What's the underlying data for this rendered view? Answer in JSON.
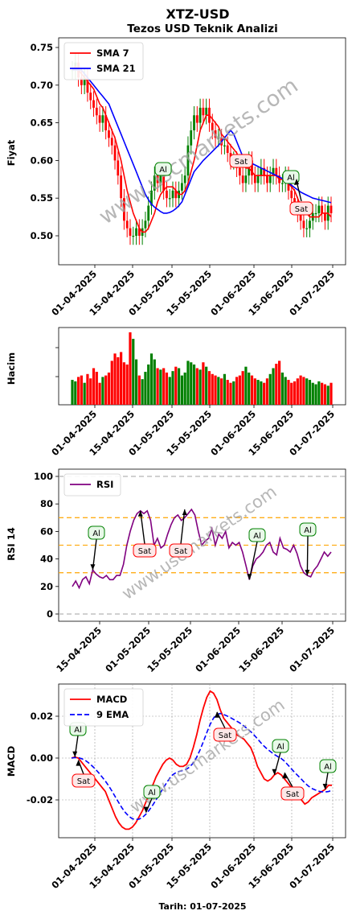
{
  "header": {
    "title": "XTZ-USD",
    "subtitle": "Tezos USD Teknik Analizi",
    "footer": "Tarih: 01-07-2025",
    "watermark": "www.uscmarkets.com"
  },
  "colors": {
    "up": "#008000",
    "down": "#ff0000",
    "sma7": "#ff0000",
    "sma21": "#0000ff",
    "rsi": "#800080",
    "macd": "#ff0000",
    "ema9": "#0000ff",
    "buy_edge": "#008000",
    "sell_edge": "#ff0000",
    "buy_fill": "#e8f8e8",
    "sell_fill": "#fde8e8",
    "level_line": "#ffa500"
  },
  "chart_data": [
    {
      "id": "price",
      "type": "candlestick",
      "ylabel": "Fiyat",
      "ylim": [
        0.465,
        0.76
      ],
      "yticks": [
        "0.50",
        "0.55",
        "0.60",
        "0.65",
        "0.70",
        "0.75"
      ],
      "xticks": [
        "01-04-2025",
        "15-04-2025",
        "01-05-2025",
        "15-05-2025",
        "01-06-2025",
        "15-06-2025",
        "01-07-2025"
      ],
      "close": [
        0.72,
        0.73,
        0.71,
        0.7,
        0.71,
        0.69,
        0.68,
        0.67,
        0.66,
        0.65,
        0.66,
        0.64,
        0.63,
        0.62,
        0.6,
        0.58,
        0.55,
        0.52,
        0.51,
        0.5,
        0.5,
        0.51,
        0.5,
        0.51,
        0.52,
        0.54,
        0.56,
        0.58,
        0.57,
        0.58,
        0.56,
        0.55,
        0.55,
        0.56,
        0.55,
        0.56,
        0.57,
        0.58,
        0.62,
        0.64,
        0.66,
        0.65,
        0.67,
        0.66,
        0.67,
        0.65,
        0.64,
        0.63,
        0.63,
        0.62,
        0.62,
        0.61,
        0.6,
        0.6,
        0.59,
        0.58,
        0.57,
        0.58,
        0.6,
        0.58,
        0.57,
        0.58,
        0.59,
        0.58,
        0.57,
        0.58,
        0.59,
        0.58,
        0.57,
        0.57,
        0.58,
        0.56,
        0.55,
        0.54,
        0.53,
        0.52,
        0.51,
        0.51,
        0.52,
        0.53,
        0.53,
        0.54,
        0.53,
        0.52,
        0.54,
        0.53
      ],
      "series": [
        {
          "name": "SMA 7",
          "values": [
            0.72,
            0.725,
            0.72,
            0.715,
            0.71,
            0.705,
            0.7,
            0.695,
            0.685,
            0.675,
            0.67,
            0.66,
            0.65,
            0.64,
            0.63,
            0.615,
            0.6,
            0.58,
            0.56,
            0.545,
            0.53,
            0.52,
            0.51,
            0.505,
            0.505,
            0.51,
            0.52,
            0.53,
            0.545,
            0.555,
            0.56,
            0.565,
            0.565,
            0.565,
            0.56,
            0.555,
            0.555,
            0.56,
            0.57,
            0.585,
            0.6,
            0.62,
            0.64,
            0.65,
            0.66,
            0.66,
            0.655,
            0.65,
            0.645,
            0.635,
            0.63,
            0.625,
            0.62,
            0.615,
            0.61,
            0.6,
            0.595,
            0.59,
            0.59,
            0.585,
            0.58,
            0.58,
            0.58,
            0.58,
            0.58,
            0.58,
            0.58,
            0.58,
            0.575,
            0.575,
            0.575,
            0.57,
            0.565,
            0.56,
            0.55,
            0.54,
            0.535,
            0.53,
            0.525,
            0.525,
            0.525,
            0.525,
            0.53,
            0.53,
            0.53,
            0.525
          ]
        },
        {
          "name": "SMA 21",
          "values": [
            0.72,
            0.72,
            0.72,
            0.72,
            0.715,
            0.71,
            0.705,
            0.7,
            0.695,
            0.69,
            0.685,
            0.68,
            0.675,
            0.665,
            0.655,
            0.645,
            0.635,
            0.625,
            0.615,
            0.605,
            0.595,
            0.585,
            0.575,
            0.565,
            0.555,
            0.548,
            0.542,
            0.538,
            0.535,
            0.532,
            0.53,
            0.53,
            0.531,
            0.533,
            0.536,
            0.54,
            0.545,
            0.555,
            0.565,
            0.575,
            0.585,
            0.59,
            0.595,
            0.6,
            0.604,
            0.608,
            0.612,
            0.616,
            0.62,
            0.625,
            0.63,
            0.635,
            0.64,
            0.635,
            0.625,
            0.615,
            0.605,
            0.6,
            0.598,
            0.596,
            0.594,
            0.592,
            0.59,
            0.588,
            0.586,
            0.584,
            0.582,
            0.58,
            0.578,
            0.576,
            0.573,
            0.57,
            0.567,
            0.564,
            0.561,
            0.558,
            0.556,
            0.554,
            0.552,
            0.55,
            0.549,
            0.548,
            0.547,
            0.546,
            0.545,
            0.544
          ]
        }
      ],
      "signals": [
        {
          "label": "Al",
          "kind": "buy",
          "x": 29,
          "y": 0.585
        },
        {
          "label": "Sat",
          "kind": "sell",
          "x": 53,
          "y": 0.6
        },
        {
          "label": "Al",
          "kind": "buy",
          "x": 70,
          "y": 0.58
        },
        {
          "label": "Sat",
          "kind": "sell",
          "x": 76,
          "y": 0.535
        }
      ]
    },
    {
      "id": "volume",
      "type": "bar",
      "ylabel": "Hacim",
      "xticks": [
        "01-04-2025",
        "15-04-2025",
        "01-05-2025",
        "15-05-2025",
        "01-06-2025",
        "15-06-2025",
        "01-07-2025"
      ],
      "values": [
        0.34,
        0.32,
        0.38,
        0.4,
        0.3,
        0.42,
        0.36,
        0.5,
        0.45,
        0.3,
        0.38,
        0.4,
        0.44,
        0.6,
        0.7,
        0.65,
        0.72,
        0.58,
        0.55,
        0.99,
        0.9,
        0.62,
        0.4,
        0.35,
        0.45,
        0.55,
        0.7,
        0.62,
        0.5,
        0.48,
        0.5,
        0.44,
        0.38,
        0.46,
        0.52,
        0.5,
        0.4,
        0.44,
        0.6,
        0.58,
        0.55,
        0.5,
        0.48,
        0.58,
        0.52,
        0.46,
        0.42,
        0.4,
        0.38,
        0.36,
        0.42,
        0.34,
        0.3,
        0.32,
        0.38,
        0.4,
        0.46,
        0.52,
        0.44,
        0.4,
        0.36,
        0.34,
        0.32,
        0.3,
        0.36,
        0.42,
        0.5,
        0.56,
        0.6,
        0.44,
        0.38,
        0.34,
        0.3,
        0.32,
        0.36,
        0.4,
        0.38,
        0.36,
        0.34,
        0.3,
        0.28,
        0.32,
        0.3,
        0.28,
        0.26,
        0.3
      ]
    },
    {
      "id": "rsi",
      "type": "line",
      "ylabel": "RSI 14",
      "ylim": [
        -4,
        104
      ],
      "yticks": [
        "0",
        "20",
        "40",
        "60",
        "80",
        "100"
      ],
      "levels": [
        0,
        30,
        50,
        70,
        100
      ],
      "xticks": [
        "15-04-2025",
        "01-05-2025",
        "15-05-2025",
        "01-06-2025",
        "15-06-2025",
        "01-07-2025"
      ],
      "series": [
        {
          "name": "RSI",
          "values": [
            20,
            24,
            19,
            25,
            27,
            22,
            32,
            29,
            27,
            26,
            28,
            25,
            25,
            28,
            28,
            36,
            50,
            60,
            68,
            73,
            75,
            73,
            75,
            68,
            50,
            55,
            48,
            50,
            58,
            65,
            70,
            72,
            68,
            70,
            73,
            76,
            72,
            60,
            50,
            53,
            55,
            62,
            50,
            58,
            55,
            60,
            48,
            52,
            50,
            52,
            45,
            35,
            25,
            35,
            40,
            42,
            45,
            50,
            52,
            45,
            43,
            55,
            48,
            47,
            45,
            50,
            44,
            35,
            30,
            28,
            27,
            32,
            35,
            40,
            45,
            42,
            45
          ]
        }
      ],
      "signals": [
        {
          "label": "Al",
          "kind": "buy",
          "x": 6,
          "y": 32
        },
        {
          "label": "Sat",
          "kind": "sell",
          "x": 20,
          "y": 75
        },
        {
          "label": "Sat",
          "kind": "sell",
          "x": 33,
          "y": 76
        },
        {
          "label": "Al",
          "kind": "buy",
          "x": 52,
          "y": 25
        },
        {
          "label": "Al",
          "kind": "buy",
          "x": 69,
          "y": 28
        }
      ]
    },
    {
      "id": "macd",
      "type": "line",
      "ylabel": "MACD",
      "ylim": [
        -0.038,
        0.035
      ],
      "yticks": [
        "-0.02",
        "0.00",
        "0.02"
      ],
      "xticks": [
        "01-04-2025",
        "15-04-2025",
        "01-05-2025",
        "15-05-2025",
        "01-06-2025",
        "15-06-2025",
        "01-07-2025"
      ],
      "series": [
        {
          "name": "MACD",
          "values": [
            0.0,
            0.0005,
            0.0,
            -0.002,
            -0.004,
            -0.006,
            -0.008,
            -0.01,
            -0.012,
            -0.014,
            -0.016,
            -0.02,
            -0.024,
            -0.028,
            -0.031,
            -0.033,
            -0.034,
            -0.034,
            -0.033,
            -0.031,
            -0.028,
            -0.025,
            -0.021,
            -0.017,
            -0.013,
            -0.009,
            -0.006,
            -0.003,
            -0.001,
            0.0,
            -0.001,
            -0.003,
            -0.004,
            -0.004,
            -0.003,
            0.0,
            0.005,
            0.011,
            0.018,
            0.024,
            0.029,
            0.032,
            0.031,
            0.028,
            0.023,
            0.019,
            0.017,
            0.015,
            0.013,
            0.011,
            0.01,
            0.009,
            0.007,
            0.005,
            0.001,
            -0.004,
            -0.007,
            -0.01,
            -0.011,
            -0.01,
            -0.008,
            -0.007,
            -0.008,
            -0.01,
            -0.012,
            -0.014,
            -0.016,
            -0.018,
            -0.02,
            -0.022,
            -0.021,
            -0.019,
            -0.018,
            -0.017,
            -0.016,
            -0.015,
            -0.013,
            -0.013
          ]
        },
        {
          "name": "9 EMA",
          "values": [
            0.0,
            0.0002,
            0.0002,
            -0.0003,
            -0.001,
            -0.0022,
            -0.0036,
            -0.0052,
            -0.007,
            -0.009,
            -0.011,
            -0.0133,
            -0.0159,
            -0.0187,
            -0.0214,
            -0.024,
            -0.0262,
            -0.0279,
            -0.029,
            -0.0294,
            -0.0292,
            -0.0283,
            -0.0268,
            -0.0248,
            -0.0225,
            -0.02,
            -0.0173,
            -0.0147,
            -0.0121,
            -0.0097,
            -0.0079,
            -0.0069,
            -0.0063,
            -0.0059,
            -0.0053,
            -0.0042,
            -0.0023,
            0.0004,
            0.0039,
            0.0079,
            0.0121,
            0.0161,
            0.0191,
            0.0208,
            0.0213,
            0.0208,
            0.0201,
            0.0193,
            0.0184,
            0.0175,
            0.0165,
            0.0153,
            0.014,
            0.0126,
            0.011,
            0.0092,
            0.0073,
            0.0056,
            0.0041,
            0.0029,
            0.0017,
            0.0007,
            -0.0002,
            -0.0015,
            -0.0033,
            -0.0051,
            -0.0069,
            -0.0085,
            -0.0101,
            -0.0119,
            -0.0133,
            -0.0145,
            -0.0152,
            -0.0158,
            -0.0161,
            -0.0162,
            -0.016,
            -0.0154
          ]
        }
      ],
      "signals": [
        {
          "label": "Al",
          "kind": "buy",
          "x": 1,
          "y": 0.0005
        },
        {
          "label": "Sat",
          "kind": "sell",
          "x": 2,
          "y": -0.001
        },
        {
          "label": "Al",
          "kind": "buy",
          "x": 22,
          "y": -0.026
        },
        {
          "label": "Sat",
          "kind": "sell",
          "x": 43,
          "y": 0.022
        },
        {
          "label": "Al",
          "kind": "buy",
          "x": 60,
          "y": -0.008
        },
        {
          "label": "Sat",
          "kind": "sell",
          "x": 63,
          "y": -0.007
        },
        {
          "label": "Al",
          "kind": "buy",
          "x": 75,
          "y": -0.015
        }
      ]
    }
  ]
}
